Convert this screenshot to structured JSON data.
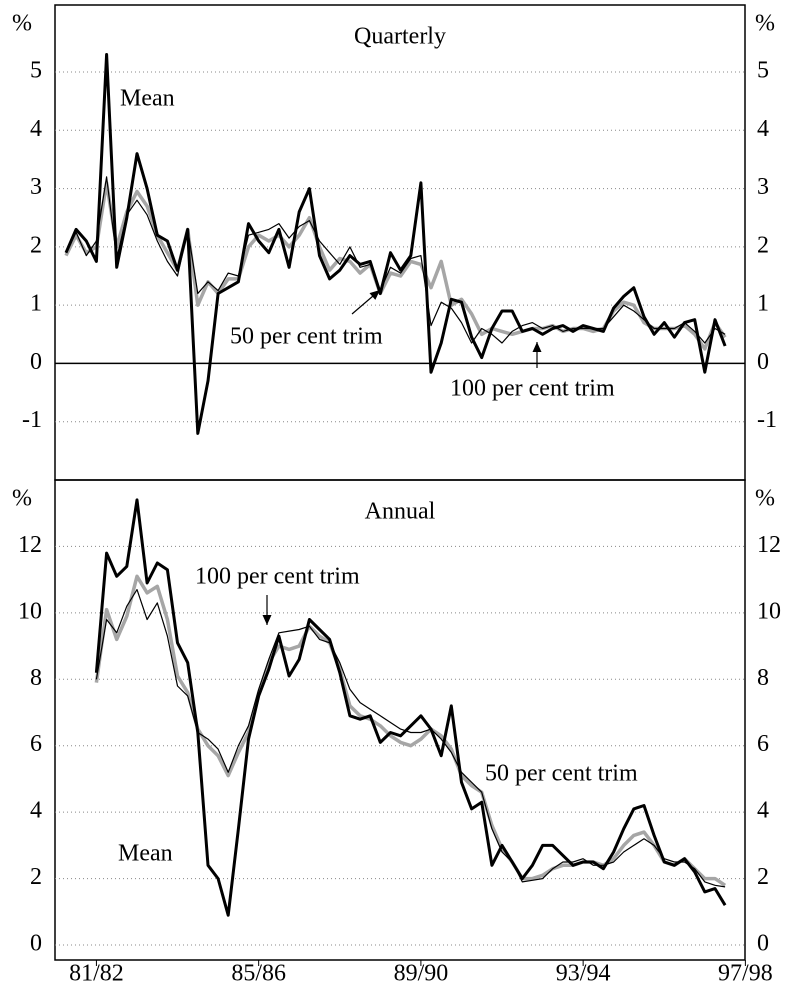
{
  "chart_data": [
    {
      "type": "line",
      "title": "Quarterly",
      "ylabel": "%",
      "ylim": [
        -2,
        6.15
      ],
      "yticks": [
        -1,
        0,
        1,
        2,
        3,
        4,
        5
      ],
      "grid": true,
      "zero_line": true,
      "series": [
        {
          "name": "50 per cent trim",
          "color": "#a6a6a6",
          "line_width": 3.5,
          "values": [
            1.85,
            2.2,
            1.9,
            2.0,
            3.1,
            2.0,
            2.6,
            2.95,
            2.7,
            2.2,
            1.9,
            1.6,
            2.3,
            1.0,
            1.4,
            1.2,
            1.45,
            1.45,
            2.0,
            2.2,
            2.1,
            2.2,
            2.0,
            2.2,
            2.5,
            2.0,
            1.6,
            1.8,
            1.75,
            1.55,
            1.7,
            1.2,
            1.55,
            1.5,
            1.75,
            1.7,
            1.3,
            1.75,
            1.0,
            1.1,
            0.85,
            0.5,
            0.6,
            0.55,
            0.5,
            0.55,
            0.6,
            0.6,
            0.65,
            0.55,
            0.6,
            0.6,
            0.55,
            0.6,
            0.9,
            1.05,
            1.0,
            0.7,
            0.6,
            0.6,
            0.6,
            0.65,
            0.5,
            0.25,
            0.7,
            0.45,
            null,
            null
          ]
        },
        {
          "name": "Mean",
          "color": "#000000",
          "line_width": 3,
          "values": [
            1.9,
            2.3,
            2.1,
            1.75,
            5.3,
            1.65,
            2.5,
            3.6,
            3.0,
            2.2,
            2.1,
            1.6,
            2.3,
            -1.2,
            -0.3,
            1.2,
            1.3,
            1.4,
            2.4,
            2.1,
            1.9,
            2.3,
            1.65,
            2.6,
            3.0,
            1.85,
            1.45,
            1.6,
            1.85,
            1.7,
            1.75,
            1.2,
            1.9,
            1.6,
            1.85,
            3.1,
            -0.15,
            0.35,
            1.1,
            1.05,
            0.45,
            0.1,
            0.6,
            0.9,
            0.9,
            0.55,
            0.6,
            0.5,
            0.6,
            0.65,
            0.55,
            0.65,
            0.6,
            0.55,
            0.95,
            1.15,
            1.3,
            0.8,
            0.5,
            0.7,
            0.45,
            0.7,
            0.75,
            -0.15,
            0.75,
            0.3,
            null,
            null
          ]
        },
        {
          "name": "100 per cent trim",
          "color": "#000000",
          "line_width": 1.2,
          "values": [
            1.9,
            2.25,
            1.85,
            2.1,
            3.2,
            1.8,
            2.55,
            2.8,
            2.55,
            2.1,
            1.75,
            1.5,
            2.3,
            1.2,
            1.4,
            1.25,
            1.55,
            1.5,
            2.2,
            2.25,
            2.3,
            2.4,
            2.15,
            2.35,
            2.45,
            2.1,
            1.9,
            1.7,
            2.0,
            1.65,
            1.7,
            1.25,
            1.65,
            1.55,
            1.8,
            1.85,
            0.65,
            1.05,
            0.95,
            0.7,
            0.35,
            0.6,
            0.5,
            0.35,
            0.55,
            0.65,
            0.7,
            0.6,
            0.65,
            0.55,
            0.6,
            0.6,
            0.6,
            0.6,
            0.8,
            1.0,
            0.9,
            0.75,
            0.6,
            0.6,
            0.6,
            0.7,
            0.55,
            0.35,
            0.6,
            0.5,
            null,
            null
          ]
        }
      ]
    },
    {
      "type": "line",
      "title": "Annual",
      "ylabel": "%",
      "ylim": [
        -0.45,
        14
      ],
      "yticks": [
        0,
        2,
        4,
        6,
        8,
        10,
        12
      ],
      "grid": true,
      "categories": [
        null,
        null,
        null,
        "81/82",
        null,
        null,
        null,
        null,
        null,
        null,
        null,
        null,
        null,
        null,
        null,
        null,
        null,
        null,
        null,
        "85/86",
        null,
        null,
        null,
        null,
        null,
        null,
        null,
        null,
        null,
        null,
        null,
        null,
        null,
        null,
        null,
        "89/90",
        null,
        null,
        null,
        null,
        null,
        null,
        null,
        null,
        null,
        null,
        null,
        null,
        null,
        null,
        null,
        "93/94",
        null,
        null,
        null,
        null,
        null,
        null,
        null,
        null,
        null,
        null,
        null,
        null,
        null,
        null,
        null,
        "97/98"
      ],
      "series": [
        {
          "name": "50 per cent trim",
          "color": "#a6a6a6",
          "line_width": 3.5,
          "values": [
            null,
            null,
            null,
            7.9,
            10.1,
            9.2,
            9.9,
            11.1,
            10.6,
            10.8,
            9.8,
            8.1,
            7.6,
            6.5,
            6.0,
            5.7,
            5.1,
            5.8,
            6.4,
            7.6,
            8.5,
            9.0,
            8.9,
            9.0,
            9.6,
            9.3,
            9.1,
            8.3,
            7.2,
            6.9,
            6.8,
            6.6,
            6.3,
            6.1,
            6.0,
            6.2,
            6.5,
            6.3,
            5.9,
            5.1,
            4.8,
            4.6,
            3.6,
            2.9,
            2.5,
            2.0,
            2.0,
            2.1,
            2.3,
            2.4,
            2.4,
            2.5,
            2.5,
            2.4,
            2.6,
            3.0,
            3.3,
            3.4,
            3.0,
            2.5,
            2.4,
            2.6,
            2.3,
            2.0,
            2.0,
            1.8,
            null,
            null
          ]
        },
        {
          "name": "Mean",
          "color": "#000000",
          "line_width": 3,
          "values": [
            null,
            null,
            null,
            8.2,
            11.8,
            11.1,
            11.4,
            13.4,
            10.9,
            11.5,
            11.3,
            9.1,
            8.5,
            6.4,
            2.4,
            2.0,
            0.9,
            3.5,
            6.2,
            7.5,
            8.3,
            9.3,
            8.1,
            8.6,
            9.8,
            9.5,
            9.2,
            8.2,
            6.9,
            6.8,
            6.9,
            6.1,
            6.4,
            6.3,
            6.6,
            6.9,
            6.5,
            5.7,
            7.2,
            4.9,
            4.1,
            4.3,
            2.4,
            3.0,
            2.5,
            2.0,
            2.4,
            3.0,
            3.0,
            2.7,
            2.4,
            2.5,
            2.5,
            2.3,
            2.8,
            3.5,
            4.1,
            4.2,
            3.3,
            2.5,
            2.4,
            2.6,
            2.2,
            1.6,
            1.7,
            1.2,
            null,
            null
          ]
        },
        {
          "name": "100 per cent trim",
          "color": "#000000",
          "line_width": 1.2,
          "values": [
            null,
            null,
            null,
            8.0,
            9.8,
            9.4,
            10.2,
            10.7,
            9.8,
            10.3,
            9.3,
            7.8,
            7.5,
            6.4,
            6.2,
            5.9,
            5.2,
            6.0,
            6.6,
            7.7,
            8.6,
            9.4,
            9.45,
            9.5,
            9.6,
            9.2,
            9.1,
            8.5,
            7.7,
            7.3,
            7.1,
            6.9,
            6.7,
            6.5,
            6.4,
            6.4,
            6.5,
            6.2,
            5.8,
            5.2,
            4.9,
            4.6,
            3.5,
            2.8,
            2.5,
            1.9,
            1.95,
            2.0,
            2.3,
            2.5,
            2.5,
            2.6,
            2.4,
            2.4,
            2.5,
            2.8,
            3.0,
            3.2,
            3.0,
            2.6,
            2.5,
            2.5,
            2.3,
            1.9,
            1.8,
            1.75,
            null,
            null
          ]
        }
      ]
    }
  ]
}
